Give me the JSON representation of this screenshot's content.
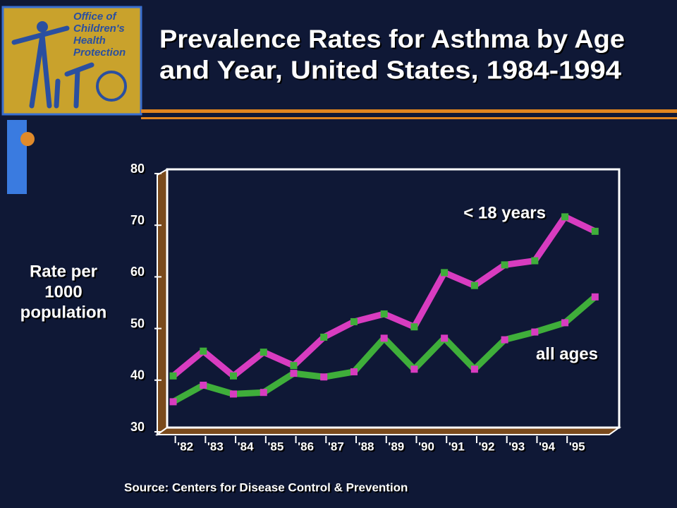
{
  "chart_data": {
    "type": "line",
    "title": [
      "Prevalence Rates for Asthma by Age",
      "and Year, United States, 1984-1994"
    ],
    "logo_text": [
      "Office of",
      "Children's",
      "Health",
      "Protection"
    ],
    "ylabel": [
      "Rate per",
      "1000",
      "population"
    ],
    "source": "Source:  Centers for Disease Control & Prevention",
    "x": [
      1981.6,
      1982.6,
      1983.6,
      1984.6,
      1985.6,
      1986.6,
      1987.6,
      1988.6,
      1989.6,
      1990.6,
      1991.6,
      1992.6,
      1993.6,
      1994.6,
      1995.6
    ],
    "series": [
      {
        "name": "< 18 years",
        "color": "#d83cc0",
        "marker_color": "#3fae3a",
        "values": [
          40,
          44.8,
          40,
          44.6,
          42,
          47.5,
          50.5,
          52,
          49.5,
          60,
          57.5,
          61.5,
          62.3,
          70.8,
          68
        ]
      },
      {
        "name": "all ages",
        "color": "#3fae3a",
        "marker_color": "#d83cc0",
        "values": [
          35,
          38.2,
          36.5,
          36.8,
          40.5,
          39.8,
          40.8,
          47.3,
          41.3,
          47.3,
          41.3,
          47,
          48.5,
          50.3,
          55.3
        ]
      }
    ],
    "xlim": [
      1981.4,
      1996.4
    ],
    "xticks": [
      {
        "value": 1982,
        "label": "'82"
      },
      {
        "value": 1983,
        "label": "'83"
      },
      {
        "value": 1984,
        "label": "'84"
      },
      {
        "value": 1985,
        "label": "'85"
      },
      {
        "value": 1986,
        "label": "'86"
      },
      {
        "value": 1987,
        "label": "'87"
      },
      {
        "value": 1988,
        "label": "'88"
      },
      {
        "value": 1989,
        "label": "'89"
      },
      {
        "value": 1990,
        "label": "'90"
      },
      {
        "value": 1991,
        "label": "'91"
      },
      {
        "value": 1992,
        "label": "'92"
      },
      {
        "value": 1993,
        "label": "'93"
      },
      {
        "value": 1994,
        "label": "'94"
      },
      {
        "value": 1995,
        "label": "'95"
      }
    ],
    "ylim": [
      30,
      80
    ],
    "yticks": [
      30,
      40,
      50,
      60,
      70,
      80
    ]
  }
}
